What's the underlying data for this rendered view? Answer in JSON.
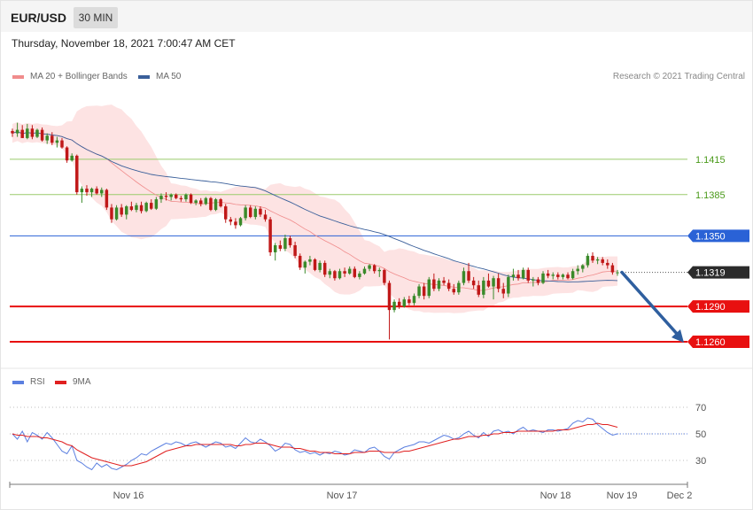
{
  "header": {
    "symbol": "EUR/USD",
    "timeframe": "30 MIN",
    "datetime": "Thursday, November 18, 2021 7:00:47 AM CET"
  },
  "legend": {
    "ma20_label": "MA 20 + Bollinger Bands",
    "ma50_label": "MA 50",
    "ma20_color": "#f08c8c",
    "ma50_color": "#3a5f9a",
    "copyright": "Research © 2021 Trading Central"
  },
  "rsi_legend": {
    "rsi_label": "RSI",
    "ma_label": "9MA",
    "rsi_color": "#5b7fe0",
    "ma_color": "#e02020"
  },
  "colors": {
    "bull": "#3a8a2a",
    "bear": "#c01818",
    "resistance_green": "#9acb6b",
    "blue_level": "#2a62d6",
    "red_level": "#e81010",
    "arrow": "#2f5f9f",
    "band_fill": "#fde3e3"
  },
  "chart_data": [
    {
      "type": "candlestick",
      "title": "EUR/USD 30 MIN",
      "ylim": [
        1.1242,
        1.146
      ],
      "x_tick_labels": [
        "Nov 16",
        "Nov 17",
        "Nov 18",
        "Nov 19",
        "Dec 2"
      ],
      "levels": [
        {
          "value": 1.1415,
          "label": "1.1415",
          "style": "resistance",
          "badge": false
        },
        {
          "value": 1.1385,
          "label": "1.1385",
          "style": "resistance",
          "badge": false
        },
        {
          "value": 1.135,
          "label": "1.1350",
          "style": "blue",
          "badge": true
        },
        {
          "value": 1.1319,
          "label": "1.1319",
          "style": "current",
          "badge": true
        },
        {
          "value": 1.129,
          "label": "1.1290",
          "style": "support",
          "badge": true
        },
        {
          "value": 1.126,
          "label": "1.1260",
          "style": "support",
          "badge": true
        }
      ],
      "projection": {
        "from": 1.1319,
        "to": 1.126
      },
      "candles": [
        [
          1.1439,
          1.1441,
          1.1434,
          1.1437
        ],
        [
          1.1437,
          1.1446,
          1.1434,
          1.144
        ],
        [
          1.144,
          1.1444,
          1.1433,
          1.1433
        ],
        [
          1.1433,
          1.1445,
          1.1432,
          1.1441
        ],
        [
          1.1441,
          1.1444,
          1.1432,
          1.1434
        ],
        [
          1.1434,
          1.1441,
          1.1433,
          1.144
        ],
        [
          1.144,
          1.1442,
          1.143,
          1.1431
        ],
        [
          1.1431,
          1.1437,
          1.1428,
          1.1435
        ],
        [
          1.1435,
          1.1438,
          1.1427,
          1.1429
        ],
        [
          1.1429,
          1.1434,
          1.1425,
          1.1431
        ],
        [
          1.1431,
          1.1433,
          1.1424,
          1.1425
        ],
        [
          1.1425,
          1.1426,
          1.1412,
          1.1414
        ],
        [
          1.1414,
          1.142,
          1.1413,
          1.1418
        ],
        [
          1.1418,
          1.1419,
          1.1385,
          1.1387
        ],
        [
          1.1387,
          1.1392,
          1.1378,
          1.139
        ],
        [
          1.139,
          1.1393,
          1.1384,
          1.1387
        ],
        [
          1.1387,
          1.1391,
          1.1383,
          1.139
        ],
        [
          1.139,
          1.1392,
          1.1385,
          1.1386
        ],
        [
          1.1386,
          1.1391,
          1.1383,
          1.1389
        ],
        [
          1.1389,
          1.139,
          1.1372,
          1.1374
        ],
        [
          1.1374,
          1.1377,
          1.1361,
          1.1364
        ],
        [
          1.1364,
          1.1376,
          1.1363,
          1.1374
        ],
        [
          1.1374,
          1.1377,
          1.1366,
          1.1368
        ],
        [
          1.1368,
          1.1376,
          1.1364,
          1.1375
        ],
        [
          1.1375,
          1.1379,
          1.1371,
          1.1372
        ],
        [
          1.1372,
          1.1378,
          1.137,
          1.1376
        ],
        [
          1.1376,
          1.1379,
          1.1369,
          1.1371
        ],
        [
          1.1371,
          1.1379,
          1.137,
          1.1378
        ],
        [
          1.1378,
          1.1381,
          1.1372,
          1.1373
        ],
        [
          1.1373,
          1.1383,
          1.1372,
          1.1381
        ],
        [
          1.1381,
          1.1386,
          1.1378,
          1.1384
        ],
        [
          1.1384,
          1.1387,
          1.138,
          1.1383
        ],
        [
          1.1383,
          1.1386,
          1.138,
          1.1385
        ],
        [
          1.1385,
          1.1386,
          1.1381,
          1.1382
        ],
        [
          1.1382,
          1.1384,
          1.1379,
          1.1381
        ],
        [
          1.1381,
          1.1386,
          1.1379,
          1.1385
        ],
        [
          1.1385,
          1.1386,
          1.1377,
          1.1378
        ],
        [
          1.1378,
          1.1381,
          1.1376,
          1.138
        ],
        [
          1.138,
          1.1382,
          1.1375,
          1.1377
        ],
        [
          1.1377,
          1.1383,
          1.1376,
          1.1382
        ],
        [
          1.1382,
          1.1383,
          1.1371,
          1.1372
        ],
        [
          1.1372,
          1.1382,
          1.1371,
          1.1381
        ],
        [
          1.1381,
          1.1382,
          1.1374,
          1.1375
        ],
        [
          1.1375,
          1.1377,
          1.1361,
          1.1364
        ],
        [
          1.1364,
          1.1366,
          1.1359,
          1.1362
        ],
        [
          1.1362,
          1.1365,
          1.1356,
          1.1359
        ],
        [
          1.1359,
          1.1366,
          1.1358,
          1.1365
        ],
        [
          1.1365,
          1.1376,
          1.1363,
          1.1374
        ],
        [
          1.1374,
          1.1376,
          1.1365,
          1.1366
        ],
        [
          1.1366,
          1.1375,
          1.1364,
          1.1373
        ],
        [
          1.1373,
          1.1375,
          1.1366,
          1.1368
        ],
        [
          1.1368,
          1.1372,
          1.1362,
          1.1364
        ],
        [
          1.1364,
          1.1366,
          1.1333,
          1.1336
        ],
        [
          1.1336,
          1.1344,
          1.1329,
          1.1342
        ],
        [
          1.1342,
          1.1346,
          1.1337,
          1.1339
        ],
        [
          1.1339,
          1.1351,
          1.1337,
          1.1348
        ],
        [
          1.1348,
          1.135,
          1.134,
          1.1342
        ],
        [
          1.1342,
          1.1345,
          1.1331,
          1.1333
        ],
        [
          1.1333,
          1.1335,
          1.1321,
          1.1323
        ],
        [
          1.1323,
          1.1329,
          1.1318,
          1.1328
        ],
        [
          1.1328,
          1.1333,
          1.1325,
          1.133
        ],
        [
          1.133,
          1.1331,
          1.132,
          1.1321
        ],
        [
          1.1321,
          1.1329,
          1.1319,
          1.1327
        ],
        [
          1.1327,
          1.1329,
          1.1315,
          1.1317
        ],
        [
          1.1317,
          1.1322,
          1.1314,
          1.132
        ],
        [
          1.132,
          1.1321,
          1.1312,
          1.1314
        ],
        [
          1.1314,
          1.1322,
          1.1313,
          1.132
        ],
        [
          1.132,
          1.1323,
          1.1315,
          1.1318
        ],
        [
          1.1318,
          1.1324,
          1.1317,
          1.1322
        ],
        [
          1.1322,
          1.1324,
          1.1314,
          1.1315
        ],
        [
          1.1315,
          1.132,
          1.1313,
          1.1318
        ],
        [
          1.1318,
          1.1324,
          1.1317,
          1.1322
        ],
        [
          1.1322,
          1.1326,
          1.132,
          1.1325
        ],
        [
          1.1325,
          1.1326,
          1.1318,
          1.132
        ],
        [
          1.132,
          1.1323,
          1.1315,
          1.1321
        ],
        [
          1.1321,
          1.1322,
          1.1308,
          1.131
        ],
        [
          1.131,
          1.1312,
          1.1262,
          1.1287
        ],
        [
          1.1287,
          1.1296,
          1.1285,
          1.1294
        ],
        [
          1.1294,
          1.1297,
          1.1288,
          1.129
        ],
        [
          1.129,
          1.1298,
          1.1289,
          1.1296
        ],
        [
          1.1296,
          1.1299,
          1.1291,
          1.1293
        ],
        [
          1.1293,
          1.1301,
          1.1291,
          1.1299
        ],
        [
          1.1299,
          1.1309,
          1.1297,
          1.1307
        ],
        [
          1.1307,
          1.131,
          1.1296,
          1.1299
        ],
        [
          1.1299,
          1.1315,
          1.1297,
          1.1313
        ],
        [
          1.1313,
          1.1318,
          1.1303,
          1.1305
        ],
        [
          1.1305,
          1.1314,
          1.1303,
          1.1312
        ],
        [
          1.1312,
          1.1315,
          1.1308,
          1.131
        ],
        [
          1.131,
          1.1313,
          1.1303,
          1.1305
        ],
        [
          1.1305,
          1.1309,
          1.13,
          1.1302
        ],
        [
          1.1302,
          1.1312,
          1.13,
          1.131
        ],
        [
          1.131,
          1.1323,
          1.1308,
          1.132
        ],
        [
          1.132,
          1.1327,
          1.131,
          1.1312
        ],
        [
          1.1312,
          1.1315,
          1.1305,
          1.1308
        ],
        [
          1.1308,
          1.1312,
          1.1298,
          1.13
        ],
        [
          1.13,
          1.1315,
          1.1297,
          1.1312
        ],
        [
          1.1312,
          1.1318,
          1.1306,
          1.1307
        ],
        [
          1.1307,
          1.1316,
          1.1296,
          1.1314
        ],
        [
          1.1314,
          1.1318,
          1.1302,
          1.1305
        ],
        [
          1.1305,
          1.131,
          1.1297,
          1.1301
        ],
        [
          1.1301,
          1.1317,
          1.1298,
          1.1315
        ],
        [
          1.1315,
          1.1322,
          1.1312,
          1.1317
        ],
        [
          1.1317,
          1.1321,
          1.1312,
          1.1314
        ],
        [
          1.1314,
          1.1323,
          1.1313,
          1.1321
        ],
        [
          1.1321,
          1.1323,
          1.131,
          1.1312
        ],
        [
          1.1312,
          1.1315,
          1.1307,
          1.1313
        ],
        [
          1.1313,
          1.1315,
          1.1308,
          1.131
        ],
        [
          1.131,
          1.132,
          1.1309,
          1.1318
        ],
        [
          1.1318,
          1.1321,
          1.1314,
          1.1316
        ],
        [
          1.1316,
          1.1319,
          1.1313,
          1.1317
        ],
        [
          1.1317,
          1.1319,
          1.1313,
          1.1315
        ],
        [
          1.1315,
          1.1318,
          1.1313,
          1.1317
        ],
        [
          1.1317,
          1.1319,
          1.1313,
          1.1314
        ],
        [
          1.1314,
          1.1322,
          1.1313,
          1.132
        ],
        [
          1.132,
          1.1325,
          1.1317,
          1.1322
        ],
        [
          1.1322,
          1.1326,
          1.1319,
          1.1325
        ],
        [
          1.1325,
          1.1335,
          1.1323,
          1.1333
        ],
        [
          1.1333,
          1.1336,
          1.1327,
          1.1329
        ],
        [
          1.1329,
          1.1332,
          1.1326,
          1.133
        ],
        [
          1.133,
          1.1332,
          1.1325,
          1.1327
        ],
        [
          1.1327,
          1.133,
          1.1322,
          1.1325
        ],
        [
          1.1325,
          1.1327,
          1.1317,
          1.1319
        ],
        [
          1.1319,
          1.1321,
          1.1316,
          1.1319
        ]
      ]
    },
    {
      "type": "line",
      "title": "RSI",
      "ylim": [
        20,
        80
      ],
      "y_ticks": [
        70,
        50,
        30
      ],
      "series": [
        {
          "name": "RSI",
          "values": [
            50,
            46,
            52,
            44,
            51,
            49,
            46,
            51,
            47,
            42,
            37,
            35,
            41,
            30,
            28,
            25,
            23,
            28,
            25,
            27,
            24,
            23,
            25,
            27,
            30,
            32,
            35,
            34,
            37,
            39,
            41,
            43,
            42,
            44,
            43,
            41,
            43,
            44,
            42,
            40,
            42,
            44,
            43,
            40,
            41,
            39,
            43,
            47,
            44,
            43,
            46,
            44,
            41,
            37,
            39,
            43,
            42,
            38,
            36,
            37,
            35,
            36,
            34,
            36,
            35,
            37,
            36,
            34,
            35,
            38,
            37,
            36,
            39,
            40,
            37,
            33,
            31,
            36,
            38,
            40,
            41,
            42,
            44,
            44,
            43,
            45,
            47,
            49,
            48,
            46,
            47,
            50,
            52,
            49,
            47,
            51,
            48,
            52,
            53,
            51,
            52,
            50,
            53,
            55,
            52,
            53,
            52,
            51,
            53,
            53,
            52,
            53,
            54,
            58,
            60,
            59,
            62,
            61,
            57,
            54,
            51,
            49,
            50
          ]
        },
        {
          "name": "9MA",
          "values": [
            50,
            49,
            49,
            48,
            48,
            48,
            47,
            47,
            46,
            45,
            44,
            42,
            41,
            38,
            36,
            34,
            32,
            31,
            30,
            29,
            28,
            27,
            26,
            26,
            26,
            27,
            28,
            29,
            31,
            33,
            35,
            37,
            38,
            39,
            40,
            41,
            41,
            42,
            42,
            42,
            42,
            42,
            42,
            42,
            42,
            41,
            41,
            42,
            42,
            43,
            43,
            43,
            42,
            41,
            40,
            40,
            40,
            39,
            39,
            38,
            37,
            37,
            36,
            36,
            36,
            35,
            35,
            35,
            35,
            36,
            36,
            36,
            37,
            37,
            37,
            36,
            36,
            36,
            36,
            37,
            37,
            38,
            39,
            40,
            41,
            42,
            43,
            44,
            45,
            46,
            46,
            47,
            48,
            48,
            48,
            49,
            49,
            50,
            50,
            51,
            51,
            51,
            52,
            52,
            52,
            52,
            52,
            52,
            52,
            52,
            53,
            53,
            53,
            54,
            55,
            56,
            57,
            57,
            58,
            57,
            57,
            56,
            55
          ]
        }
      ]
    }
  ]
}
